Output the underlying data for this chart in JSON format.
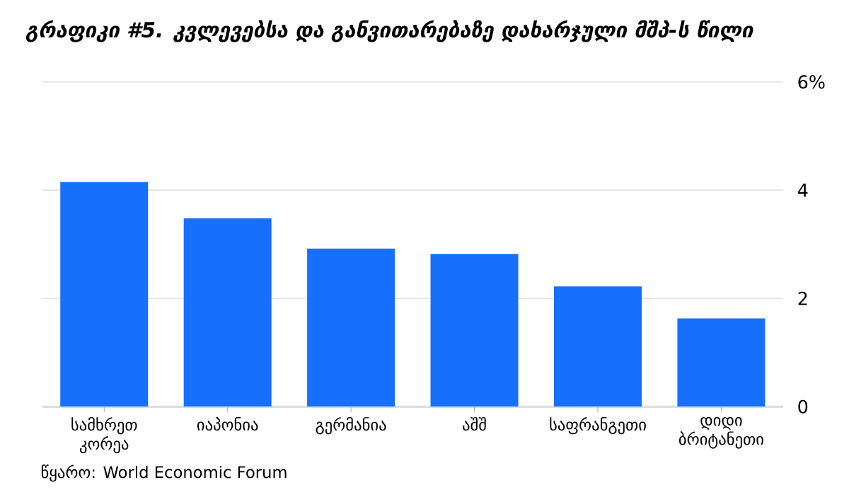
{
  "chart_data": {
    "type": "bar",
    "title": "გრაფიკი #5. კვლევებსა და განვითარებაზე დახარჯული მშპ-ს წილი",
    "categories": [
      "სამხრეთ კორეა",
      "იაპონია",
      "გერმანია",
      "აშშ",
      "საფრანგეთი",
      "დიდი ბრიტანეთი"
    ],
    "values": [
      4.15,
      3.48,
      2.92,
      2.82,
      2.22,
      1.63
    ],
    "color": "#1670fb",
    "ylim": [
      0,
      6
    ],
    "yticks": [
      0,
      2,
      4,
      {
        "value": 6,
        "label": "6%"
      }
    ],
    "grid": "y",
    "annotations": [
      "წყარო: World Economic Forum"
    ]
  }
}
